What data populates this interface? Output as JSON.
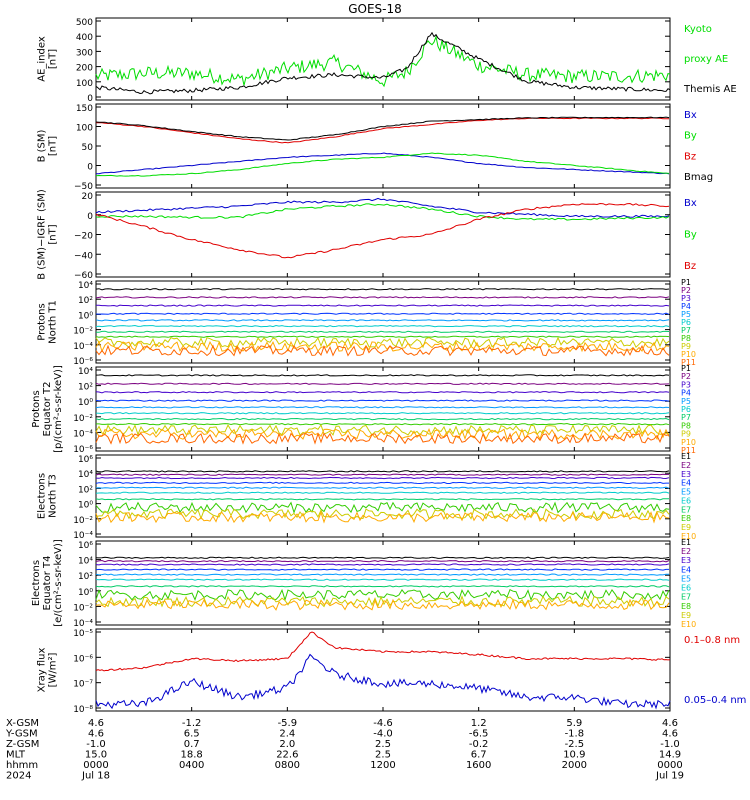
{
  "title": "GOES-18",
  "colors": {
    "black": "#000000",
    "red": "#e00000",
    "green": "#00dd00",
    "blue": "#0000cc",
    "ch": [
      "#000000",
      "#7a0080",
      "#4400cc",
      "#0033ff",
      "#0099ff",
      "#00cccc",
      "#00cc66",
      "#33cc00",
      "#cccc00",
      "#ffaa00",
      "#ff6600",
      "#cc0000",
      "#aa0000"
    ]
  },
  "panels": [
    {
      "id": "ae",
      "ylabel": [
        "AE_index",
        "[nT]"
      ],
      "ticks": [
        "500",
        "400",
        "300",
        "200",
        "100",
        "0"
      ],
      "legend": [
        {
          "text": "Kyoto",
          "color": "#00dd00"
        },
        {
          "text": "proxy AE",
          "color": "#00dd00"
        },
        {
          "text": "Themis AE",
          "color": "#000000"
        }
      ]
    },
    {
      "id": "bsm",
      "ylabel": [
        "B (SM)",
        "[nT]"
      ],
      "ticks": [
        "150",
        "100",
        "50",
        "0",
        "−50"
      ],
      "legend": [
        {
          "text": "Bx",
          "color": "#0000cc"
        },
        {
          "text": "By",
          "color": "#00dd00"
        },
        {
          "text": "Bz",
          "color": "#e00000"
        },
        {
          "text": "Bmag",
          "color": "#000000"
        }
      ]
    },
    {
      "id": "bigrf",
      "ylabel": [
        "B (SM)−IGRF (SM)",
        "[nT]"
      ],
      "ticks": [
        "20",
        "0",
        "−20",
        "−40",
        "−60"
      ],
      "legend": [
        {
          "text": "Bx",
          "color": "#0000cc"
        },
        {
          "text": "By",
          "color": "#00dd00"
        },
        {
          "text": "Bz",
          "color": "#e00000"
        }
      ]
    },
    {
      "id": "pt1",
      "ylabel": [
        "Protons",
        "North T1"
      ],
      "ticks": [
        "10⁴",
        "10²",
        "10⁰",
        "10⁻²",
        "10⁻⁴",
        "10⁻⁶"
      ],
      "legend": [
        "P1",
        "P2",
        "P3",
        "P4",
        "P5",
        "P6",
        "P7",
        "P8",
        "P9",
        "P10",
        "P11"
      ]
    },
    {
      "id": "pt2",
      "ylabel": [
        "Protons",
        "Equator T2",
        "[p/(cm²-s-sr-keV)]"
      ],
      "ticks": [
        "10⁴",
        "10²",
        "10⁰",
        "10⁻²",
        "10⁻⁴",
        "10⁻⁶"
      ],
      "legend": [
        "P1",
        "P2",
        "P3",
        "P4",
        "P5",
        "P6",
        "P7",
        "P8",
        "P9",
        "P10",
        "P11"
      ]
    },
    {
      "id": "et3",
      "ylabel": [
        "Electrons",
        "North T3"
      ],
      "ticks": [
        "10⁶",
        "10⁴",
        "10²",
        "10⁰",
        "10⁻²",
        "10⁻⁴"
      ],
      "legend": [
        "E1",
        "E2",
        "E3",
        "E4",
        "E5",
        "E6",
        "E7",
        "E8",
        "E9",
        "E10"
      ]
    },
    {
      "id": "et4",
      "ylabel": [
        "Electrons",
        "Equator T4",
        "[e/(cm²-s-sr-keV)]"
      ],
      "ticks": [
        "10⁶",
        "10⁴",
        "10²",
        "10⁰",
        "10⁻²",
        "10⁻⁴"
      ],
      "legend": [
        "E1",
        "E2",
        "E3",
        "E4",
        "E5",
        "E6",
        "E7",
        "E8",
        "E9",
        "E10"
      ]
    },
    {
      "id": "xray",
      "ylabel": [
        "Xray flux",
        "[W/m²]"
      ],
      "ticks": [
        "10⁻⁵",
        "10⁻⁶",
        "10⁻⁷",
        "10⁻⁸"
      ],
      "legend": [
        {
          "text": "0.1–0.8 nm",
          "color": "#e00000"
        },
        {
          "text": "0.05–0.4 nm",
          "color": "#0000cc"
        }
      ]
    }
  ],
  "ephemeris": {
    "labels": [
      "X-GSM",
      "Y-GSM",
      "Z-GSM",
      "MLT",
      "hhmm",
      "2024"
    ],
    "columns": [
      [
        "4.6",
        "4.6",
        "-1.0",
        "15.0",
        "0000",
        "Jul 18"
      ],
      [
        "-1.2",
        "6.5",
        "0.7",
        "18.8",
        "0400",
        ""
      ],
      [
        "-5.9",
        "2.4",
        "2.0",
        "22.6",
        "0800",
        ""
      ],
      [
        "-4.6",
        "-4.0",
        "2.5",
        "2.5",
        "1200",
        ""
      ],
      [
        "1.2",
        "-6.5",
        "-0.2",
        "6.7",
        "1600",
        ""
      ],
      [
        "5.9",
        "-1.8",
        "-2.5",
        "10.9",
        "2000",
        ""
      ],
      [
        "4.6",
        "4.6",
        "-1.0",
        "14.9",
        "0000",
        "Jul 19"
      ]
    ]
  },
  "chart_data": [
    {
      "type": "line",
      "title": "GOES-18",
      "ylabel": "AE_index [nT]",
      "ylim": [
        0,
        500
      ],
      "x": [
        0,
        2,
        4,
        6,
        8,
        10,
        12,
        13,
        14,
        16,
        18,
        20,
        22,
        24
      ],
      "series": [
        {
          "name": "Kyoto proxy AE",
          "values": [
            150,
            170,
            170,
            130,
            200,
            240,
            120,
            180,
            380,
            220,
            160,
            150,
            150,
            160
          ]
        },
        {
          "name": "Themis AE",
          "values": [
            80,
            50,
            60,
            80,
            140,
            160,
            140,
            200,
            420,
            260,
            120,
            80,
            70,
            60
          ]
        }
      ]
    },
    {
      "type": "line",
      "ylabel": "B (SM) [nT]",
      "ylim": [
        -50,
        150
      ],
      "x": [
        0,
        2,
        4,
        6,
        8,
        10,
        12,
        14,
        16,
        18,
        20,
        22,
        24
      ],
      "series": [
        {
          "name": "Bx",
          "values": [
            -20,
            -10,
            0,
            10,
            20,
            25,
            30,
            20,
            5,
            -5,
            -10,
            -15,
            -20
          ]
        },
        {
          "name": "By",
          "values": [
            -25,
            -25,
            -20,
            -10,
            5,
            15,
            20,
            30,
            25,
            10,
            0,
            -10,
            -20
          ]
        },
        {
          "name": "Bz",
          "values": [
            105,
            95,
            80,
            65,
            55,
            70,
            90,
            100,
            110,
            115,
            115,
            115,
            115
          ]
        },
        {
          "name": "Bmag",
          "values": [
            107,
            97,
            83,
            70,
            62,
            75,
            95,
            108,
            112,
            116,
            117,
            117,
            117
          ]
        }
      ]
    },
    {
      "type": "line",
      "ylabel": "B (SM)−IGRF (SM) [nT]",
      "ylim": [
        -60,
        20
      ],
      "x": [
        0,
        2,
        4,
        6,
        8,
        10,
        12,
        14,
        16,
        18,
        20,
        22,
        24
      ],
      "series": [
        {
          "name": "Bx",
          "values": [
            2,
            4,
            6,
            8,
            12,
            12,
            15,
            8,
            2,
            0,
            -2,
            -2,
            -2
          ]
        },
        {
          "name": "By",
          "values": [
            -2,
            -2,
            -3,
            -3,
            5,
            8,
            10,
            5,
            -2,
            -5,
            -5,
            -4,
            -3
          ]
        },
        {
          "name": "Bz",
          "values": [
            0,
            -12,
            -25,
            -35,
            -43,
            -35,
            -25,
            -20,
            -5,
            5,
            10,
            10,
            8
          ]
        }
      ]
    },
    {
      "type": "line",
      "ylabel": "Protons North T1",
      "yscale": "log",
      "ylim": [
        "1e-6",
        "1e4"
      ],
      "series_names": [
        "P1",
        "P2",
        "P3",
        "P4",
        "P5",
        "P6",
        "P7",
        "P8",
        "P9",
        "P10",
        "P11"
      ],
      "approx_log10_levels": [
        3,
        2,
        1,
        0,
        -0.8,
        -1.5,
        -2.2,
        -2.8,
        -3.5,
        -4,
        -4.5
      ]
    },
    {
      "type": "line",
      "ylabel": "Protons Equator T2 [p/(cm²-s-sr-keV)]",
      "yscale": "log",
      "ylim": [
        "1e-6",
        "1e4"
      ],
      "series_names": [
        "P1",
        "P2",
        "P3",
        "P4",
        "P5",
        "P6",
        "P7",
        "P8",
        "P9",
        "P10",
        "P11"
      ],
      "approx_log10_levels": [
        3,
        2,
        1,
        0,
        -0.8,
        -1.5,
        -2.2,
        -2.8,
        -3.5,
        -4,
        -4.5
      ]
    },
    {
      "type": "line",
      "ylabel": "Electrons North T3",
      "yscale": "log",
      "ylim": [
        "1e-4",
        "1e6"
      ],
      "series_names": [
        "E1",
        "E2",
        "E3",
        "E4",
        "E5",
        "E6",
        "E7",
        "E8",
        "E9",
        "E10"
      ],
      "approx_log10_levels": [
        4,
        3.6,
        3.2,
        2.6,
        2,
        1.4,
        0.6,
        -0.4,
        -1.2,
        -1.6
      ]
    },
    {
      "type": "line",
      "ylabel": "Electrons Equator T4 [e/(cm²-s-sr-keV)]",
      "yscale": "log",
      "ylim": [
        "1e-4",
        "1e6"
      ],
      "series_names": [
        "E1",
        "E2",
        "E3",
        "E4",
        "E5",
        "E6",
        "E7",
        "E8",
        "E9",
        "E10"
      ],
      "approx_log10_levels": [
        4,
        3.6,
        3.2,
        2.6,
        2,
        1.4,
        0.6,
        -0.4,
        -1.2,
        -1.6
      ]
    },
    {
      "type": "line",
      "ylabel": "Xray flux [W/m²]",
      "yscale": "log",
      "x": [
        0,
        2,
        4,
        6,
        8,
        9,
        10,
        12,
        14,
        16,
        18,
        20,
        22,
        24
      ],
      "series": [
        {
          "name": "0.1–0.8 nm",
          "values": [
            "3e-7",
            "4e-7",
            "1e-6",
            "8e-7",
            "1e-6",
            "1.5e-5",
            "3e-6",
            "2e-6",
            "2e-6",
            "1.5e-6",
            "1e-6",
            "1e-6",
            "1e-6",
            "9e-7"
          ]
        },
        {
          "name": "0.05–0.4 nm",
          "values": [
            "1e-8",
            "1e-8",
            "1e-7",
            "2e-8",
            "5e-8",
            "1.2e-6",
            "2e-7",
            "8e-8",
            "8e-8",
            "5e-8",
            "2e-8",
            "2e-8",
            "1e-8",
            "1e-8"
          ]
        }
      ]
    }
  ]
}
